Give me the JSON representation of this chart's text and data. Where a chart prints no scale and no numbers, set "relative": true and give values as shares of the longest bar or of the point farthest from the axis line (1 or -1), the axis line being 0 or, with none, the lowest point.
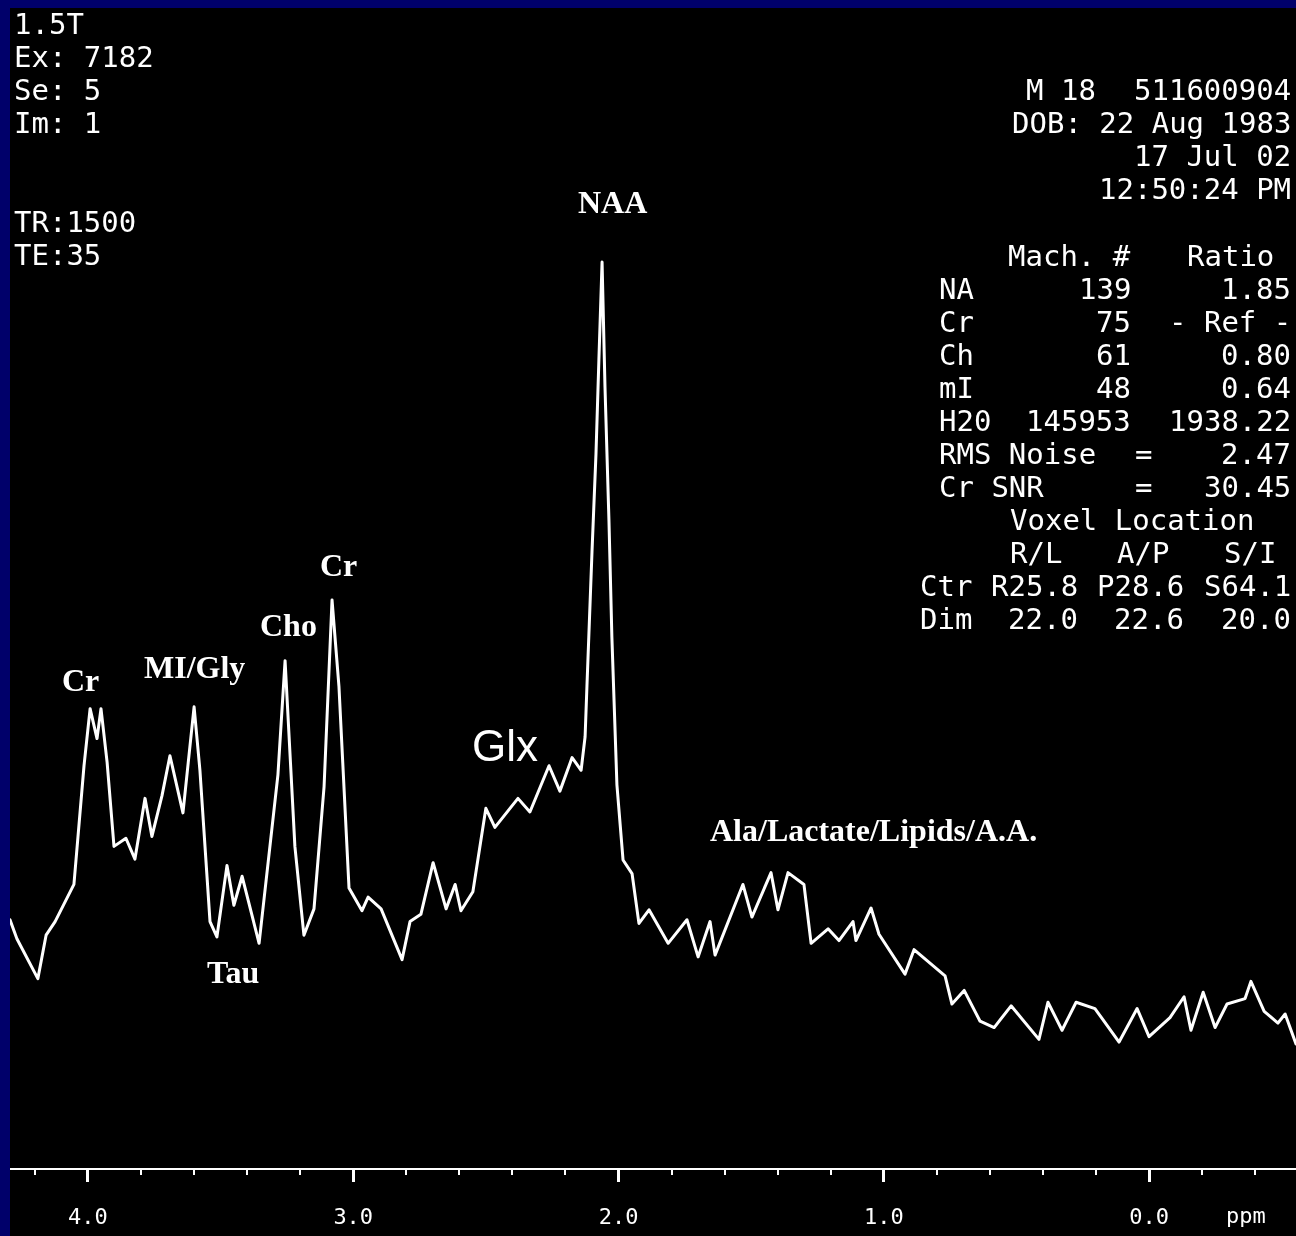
{
  "chart_data": {
    "type": "line",
    "relative": true,
    "line_style": "solid",
    "x": [
      4.294,
      4.268,
      4.189,
      4.158,
      4.124,
      4.053,
      4.015,
      3.992,
      3.966,
      3.951,
      3.928,
      3.902,
      3.857,
      3.823,
      3.785,
      3.759,
      3.721,
      3.691,
      3.642,
      3.6,
      3.578,
      3.54,
      3.514,
      3.476,
      3.45,
      3.419,
      3.355,
      3.284,
      3.257,
      3.22,
      3.186,
      3.148,
      3.11,
      3.08,
      3.054,
      3.016,
      2.967,
      2.944,
      2.895,
      2.816,
      2.786,
      2.745,
      2.699,
      2.65,
      2.616,
      2.594,
      2.549,
      2.5,
      2.466,
      2.379,
      2.334,
      2.262,
      2.221,
      2.175,
      2.141,
      2.126,
      2.119,
      2.1,
      2.085,
      2.074,
      2.062,
      2.051,
      2.036,
      2.025,
      2.006,
      1.983,
      1.949,
      1.923,
      1.885,
      1.813,
      1.742,
      1.7,
      1.655,
      1.636,
      1.531,
      1.497,
      1.425,
      1.399,
      1.361,
      1.301,
      1.274,
      1.21,
      1.169,
      1.116,
      1.105,
      1.048,
      1.018,
      0.92,
      0.886,
      0.769,
      0.743,
      0.697,
      0.637,
      0.584,
      0.52,
      0.415,
      0.381,
      0.328,
      0.275,
      0.204,
      0.113,
      0.045,
      0.0,
      -0.079,
      -0.132,
      -0.158,
      -0.204,
      -0.249,
      -0.294,
      -0.362,
      -0.384,
      -0.434,
      -0.486,
      -0.513,
      -0.554
    ],
    "series": [
      {
        "color": "#ffffff",
        "values": [
          0.274,
          0.253,
          0.209,
          0.257,
          0.272,
          0.313,
          0.444,
          0.507,
          0.474,
          0.507,
          0.448,
          0.355,
          0.364,
          0.341,
          0.408,
          0.366,
          0.411,
          0.455,
          0.392,
          0.509,
          0.439,
          0.272,
          0.255,
          0.334,
          0.29,
          0.322,
          0.248,
          0.434,
          0.56,
          0.355,
          0.257,
          0.286,
          0.421,
          0.627,
          0.532,
          0.309,
          0.284,
          0.299,
          0.286,
          0.23,
          0.272,
          0.28,
          0.337,
          0.286,
          0.313,
          0.284,
          0.305,
          0.397,
          0.376,
          0.408,
          0.393,
          0.444,
          0.416,
          0.453,
          0.439,
          0.476,
          0.532,
          0.68,
          0.788,
          0.892,
          1.0,
          0.862,
          0.714,
          0.586,
          0.423,
          0.34,
          0.325,
          0.27,
          0.285,
          0.248,
          0.274,
          0.233,
          0.272,
          0.235,
          0.313,
          0.277,
          0.326,
          0.285,
          0.326,
          0.313,
          0.248,
          0.264,
          0.251,
          0.272,
          0.251,
          0.287,
          0.258,
          0.214,
          0.241,
          0.212,
          0.181,
          0.196,
          0.162,
          0.155,
          0.179,
          0.142,
          0.183,
          0.152,
          0.183,
          0.176,
          0.139,
          0.176,
          0.145,
          0.166,
          0.189,
          0.152,
          0.194,
          0.155,
          0.181,
          0.187,
          0.206,
          0.173,
          0.16,
          0.17,
          0.137
        ]
      }
    ],
    "xlim": [
      4.294,
      -0.554
    ],
    "xticks": [
      {
        "value": 4.2,
        "label": null
      },
      {
        "value": 4.0,
        "label": "4.0"
      },
      {
        "value": 3.8,
        "label": null
      },
      {
        "value": 3.6,
        "label": null
      },
      {
        "value": 3.4,
        "label": null
      },
      {
        "value": 3.2,
        "label": null
      },
      {
        "value": 3.0,
        "label": "3.0"
      },
      {
        "value": 2.8,
        "label": null
      },
      {
        "value": 2.6,
        "label": null
      },
      {
        "value": 2.4,
        "label": null
      },
      {
        "value": 2.2,
        "label": null
      },
      {
        "value": 2.0,
        "label": "2.0"
      },
      {
        "value": 1.8,
        "label": null
      },
      {
        "value": 1.6,
        "label": null
      },
      {
        "value": 1.4,
        "label": null
      },
      {
        "value": 1.2,
        "label": null
      },
      {
        "value": 1.0,
        "label": "1.0"
      },
      {
        "value": 0.8,
        "label": null
      },
      {
        "value": 0.6,
        "label": null
      },
      {
        "value": 0.4,
        "label": null
      },
      {
        "value": 0.2,
        "label": null
      },
      {
        "value": 0.0,
        "label": "0.0"
      },
      {
        "value": -0.2,
        "label": null
      },
      {
        "value": -0.4,
        "label": null
      }
    ],
    "xlabel": "ppm",
    "annotations": [
      "1.5T",
      "Ex: 7182",
      "Se: 5",
      "Im: 1",
      "TR:1500",
      "TE:35",
      "M 18",
      "511600904",
      "DOB: 22 Aug 1983",
      "17 Jul 02",
      "12:50:24 PM",
      "Mach. #",
      "Ratio",
      "NA",
      "139",
      "1.85",
      "Cr",
      "75",
      "- Ref -",
      "Ch",
      "61",
      "0.80",
      "mI",
      "48",
      "0.64",
      "H20",
      "145953",
      "1938.22",
      "RMS Noise",
      "=",
      "2.47",
      "Cr SNR",
      "=",
      "30.45",
      "Voxel Location",
      "R/L",
      "A/P",
      "S/I",
      "Ctr",
      "R25.8",
      "P28.6",
      "S64.1",
      "Dim",
      "22.0",
      "22.6",
      "20.0",
      "Glx",
      "Tau",
      "Ala/Lactate/Lipids/A.A.",
      {
        "text": "Cr",
        "x": 3.992,
        "y": 0.507
      },
      {
        "text": "MI/Gly",
        "x": 3.6,
        "y": 0.509
      },
      {
        "text": "Cho",
        "x": 3.257,
        "y": 0.56
      },
      {
        "text": "Cr",
        "x": 3.08,
        "y": 0.627
      },
      {
        "text": "NAA",
        "x": 2.062,
        "y": 1.0
      }
    ]
  }
}
